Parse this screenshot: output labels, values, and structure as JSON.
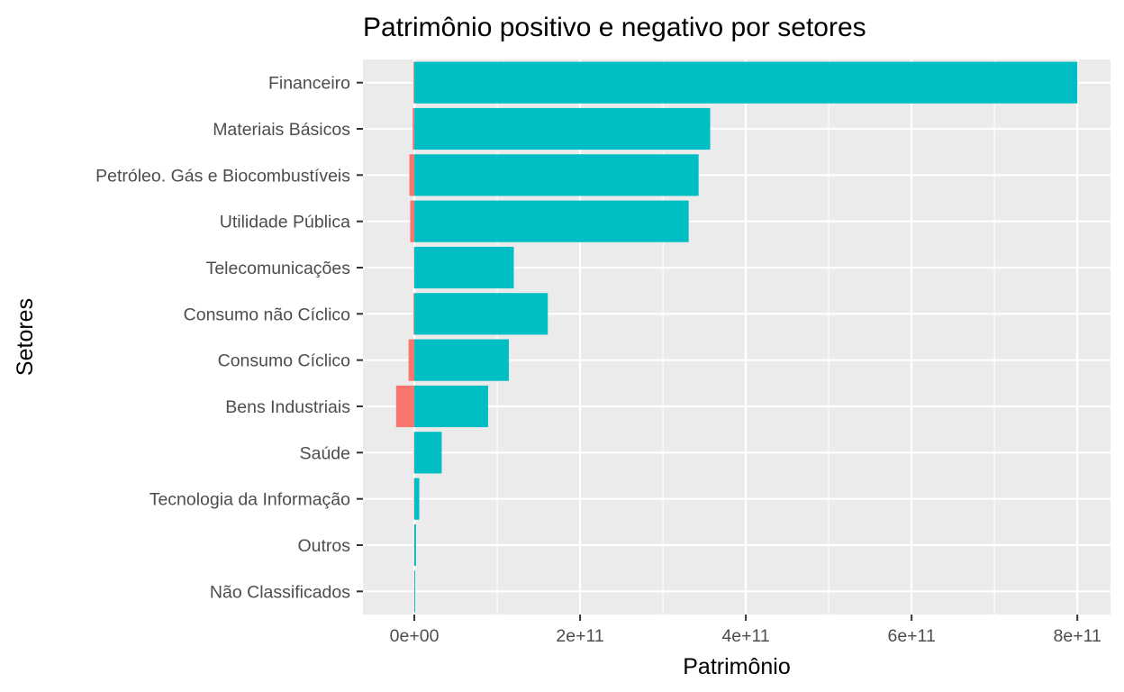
{
  "chart_data": {
    "type": "bar",
    "orientation": "horizontal",
    "title": "Patrimônio positivo e negativo por setores",
    "xlabel": "Patrimônio",
    "ylabel": "Setores",
    "xlim": [
      -62000000000.0,
      840000000000.0
    ],
    "x_ticks": [
      {
        "value": 0,
        "label": "0e+00"
      },
      {
        "value": 200000000000.0,
        "label": "2e+11"
      },
      {
        "value": 400000000000.0,
        "label": "4e+11"
      },
      {
        "value": 600000000000.0,
        "label": "6e+11"
      },
      {
        "value": 800000000000.0,
        "label": "8e+11"
      }
    ],
    "grid": true,
    "legend": "none",
    "categories": [
      "Financeiro",
      "Materiais Básicos",
      "Petróleo. Gás e Biocombustíveis",
      "Utilidade Pública",
      "Telecomunicações",
      "Consumo não Cíclico",
      "Consumo Cíclico",
      "Bens Industriais",
      "Saúde",
      "Tecnologia da Informação",
      "Outros",
      "Não Classificados"
    ],
    "series": [
      {
        "color": "#F8766D",
        "values": [
          -1000000000.0,
          -2000000000.0,
          -6000000000.0,
          -5000000000.0,
          -500000000.0,
          -1000000000.0,
          -7000000000.0,
          -22000000000.0,
          -500000000.0,
          -500000000.0,
          -300000000.0,
          -200000000.0
        ]
      },
      {
        "color": "#00BFC4",
        "values": [
          800000000000.0,
          357000000000.0,
          343000000000.0,
          331000000000.0,
          120000000000.0,
          161000000000.0,
          114000000000.0,
          89000000000.0,
          33000000000.0,
          6000000000.0,
          2000000000.0,
          1000000000.0
        ]
      }
    ]
  },
  "colors": {
    "panel_background": "#EBEBEB",
    "grid_line": "#FFFFFF",
    "tick_text": "#4D4D4D",
    "axis_tick": "#333333"
  }
}
